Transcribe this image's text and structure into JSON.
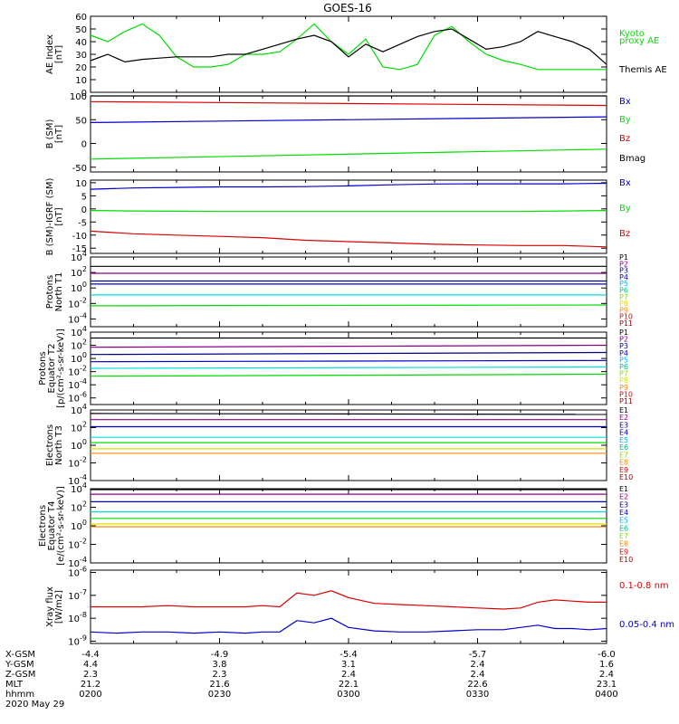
{
  "title": "GOES-16",
  "colors": {
    "black": "#000000",
    "red": "#dd0000",
    "green": "#00dd00",
    "blue": "#0000cc",
    "cyan": "#00dddd",
    "yellow": "#dddd00",
    "orange": "#ff8800",
    "darkred": "#aa0000",
    "purple": "#880088",
    "navy": "#000088",
    "lightblue": "#00aaff",
    "teal": "#00bb88",
    "lime": "#88dd00"
  },
  "time_axis": {
    "rows": [
      {
        "label": "X-GSM",
        "values": [
          "-4.4",
          "-4.9",
          "-5.4",
          "-5.7",
          "-6.0"
        ]
      },
      {
        "label": "Y-GSM",
        "values": [
          "4.4",
          "3.8",
          "3.1",
          "2.4",
          "1.6"
        ]
      },
      {
        "label": "Z-GSM",
        "values": [
          "2.3",
          "2.3",
          "2.4",
          "2.4",
          "2.4"
        ]
      },
      {
        "label": "MLT",
        "values": [
          "21.2",
          "21.6",
          "22.1",
          "22.6",
          "23.1"
        ]
      },
      {
        "label": "hhmm",
        "values": [
          "0200",
          "0230",
          "0300",
          "0330",
          "0400"
        ]
      }
    ],
    "date": "2020 May 29"
  },
  "chart_data": [
    {
      "type": "line",
      "ylabel": [
        "AE Index",
        "[nT]"
      ],
      "ylim": [
        0,
        60
      ],
      "ticks": [
        "0",
        "10",
        "20",
        "30",
        "40",
        "50",
        "60"
      ],
      "tickvals": [
        0,
        10,
        20,
        30,
        40,
        50,
        60
      ],
      "legend": [
        {
          "text": "Kyoto",
          "color": "green"
        },
        {
          "text": "proxy AE",
          "color": "green"
        },
        {
          "text": "Themis AE",
          "color": "black"
        }
      ],
      "x": [
        0,
        4,
        8,
        12,
        16,
        20,
        24,
        28,
        32,
        36,
        40,
        44,
        48,
        52,
        56,
        60,
        64,
        68,
        72,
        76,
        80,
        84,
        88,
        92,
        96,
        100,
        104,
        108,
        112,
        116,
        120
      ],
      "series": [
        {
          "name": "Kyoto proxy AE",
          "color": "green",
          "values": [
            45,
            40,
            48,
            54,
            45,
            28,
            20,
            20,
            22,
            30,
            30,
            32,
            42,
            54,
            40,
            30,
            42,
            20,
            18,
            22,
            45,
            52,
            40,
            30,
            25,
            22,
            18,
            18,
            18,
            18,
            18
          ]
        },
        {
          "name": "Themis AE",
          "color": "black",
          "values": [
            25,
            30,
            24,
            26,
            27,
            28,
            28,
            28,
            30,
            30,
            34,
            38,
            42,
            45,
            40,
            28,
            38,
            32,
            38,
            44,
            48,
            50,
            42,
            34,
            36,
            40,
            48,
            44,
            40,
            34,
            22
          ]
        }
      ]
    },
    {
      "type": "line",
      "ylabel": [
        "B (SM)",
        "[nT]"
      ],
      "ylim": [
        -60,
        100
      ],
      "ticks": [
        "-50",
        "0",
        "50",
        "100"
      ],
      "tickvals": [
        -50,
        0,
        50,
        100
      ],
      "legend": [
        {
          "text": "Bx",
          "color": "blue"
        },
        {
          "text": "By",
          "color": "green"
        },
        {
          "text": "Bz",
          "color": "red"
        },
        {
          "text": "Bmag",
          "color": "black"
        }
      ],
      "x": [
        0,
        120
      ],
      "series": [
        {
          "name": "Bx",
          "color": "blue",
          "values": [
            44,
            56
          ]
        },
        {
          "name": "By",
          "color": "green",
          "values": [
            -33,
            -12
          ]
        },
        {
          "name": "Bz",
          "color": "red",
          "values": [
            88,
            80
          ]
        },
        {
          "name": "Bmag",
          "color": "black",
          "values": [
            100,
            100
          ]
        }
      ]
    },
    {
      "type": "line",
      "ylabel": [
        "B (SM)-IGRF (SM)",
        "[nT]"
      ],
      "ylim": [
        -17,
        11
      ],
      "ticks": [
        "10",
        "5",
        "0",
        "-5",
        "-10",
        "-15"
      ],
      "tickvals": [
        10,
        5,
        0,
        -5,
        -10,
        -15
      ],
      "legend": [
        {
          "text": "Bx",
          "color": "blue"
        },
        {
          "text": "By",
          "color": "green"
        },
        {
          "text": "Bz",
          "color": "red"
        }
      ],
      "x": [
        0,
        10,
        20,
        30,
        40,
        50,
        60,
        70,
        80,
        90,
        100,
        110,
        120
      ],
      "series": [
        {
          "name": "Bx",
          "color": "blue",
          "values": [
            7.5,
            8,
            8.2,
            8.4,
            8.4,
            8.5,
            8.8,
            9.2,
            9.5,
            9.6,
            9.6,
            9.6,
            9.8
          ]
        },
        {
          "name": "By",
          "color": "green",
          "values": [
            -0.6,
            -0.8,
            -0.9,
            -1,
            -1,
            -1,
            -1,
            -1,
            -1,
            -1,
            -1,
            -0.8,
            -0.6
          ]
        },
        {
          "name": "Bz",
          "color": "red",
          "values": [
            -8.5,
            -9.5,
            -10,
            -10.5,
            -11,
            -12,
            -12.5,
            -13,
            -13.5,
            -13.8,
            -14,
            -14,
            -14.5
          ]
        }
      ]
    },
    {
      "type": "line",
      "log": true,
      "ylabel": [
        "Protons",
        "North T1"
      ],
      "ylim": [
        -5,
        4
      ],
      "ticks": [
        "10^4",
        "10^2",
        "10^0",
        "10^-2",
        "10^-4"
      ],
      "tickvals": [
        4,
        2,
        0,
        -2,
        -4
      ],
      "legend": [
        {
          "text": "P1",
          "color": "black"
        },
        {
          "text": "P2",
          "color": "purple"
        },
        {
          "text": "P3",
          "color": "navy"
        },
        {
          "text": "P4",
          "color": "blue"
        },
        {
          "text": "P5",
          "color": "lightblue"
        },
        {
          "text": "P6",
          "color": "teal"
        },
        {
          "text": "P7",
          "color": "lime"
        },
        {
          "text": "P8",
          "color": "yellow"
        },
        {
          "text": "P9",
          "color": "orange"
        },
        {
          "text": "P10",
          "color": "red"
        },
        {
          "text": "P11",
          "color": "darkred"
        }
      ],
      "x": [
        0,
        120
      ],
      "series": [
        {
          "name": "P1",
          "color": "black",
          "values": [
            2.8,
            2.8
          ]
        },
        {
          "name": "P2",
          "color": "purple",
          "values": [
            1.9,
            1.9
          ]
        },
        {
          "name": "P3",
          "color": "navy",
          "values": [
            0.9,
            0.9
          ]
        },
        {
          "name": "P4",
          "color": "blue",
          "values": [
            0.5,
            0.5
          ]
        },
        {
          "name": "P5",
          "color": "cyan",
          "values": [
            -0.9,
            -0.9
          ]
        },
        {
          "name": "P6",
          "color": "green",
          "values": [
            -2.3,
            -2.2
          ]
        }
      ]
    },
    {
      "type": "line",
      "log": true,
      "ylabel": [
        "Protons",
        "Equator T2",
        "[p/(cm²-s-sr-keV)]"
      ],
      "ylim": [
        -7,
        4
      ],
      "ticks": [
        "10^4",
        "10^2",
        "10^0",
        "10^-2",
        "10^-4",
        "10^-6"
      ],
      "tickvals": [
        4,
        2,
        0,
        -2,
        -4,
        -6
      ],
      "legend": [
        {
          "text": "P1",
          "color": "black"
        },
        {
          "text": "P2",
          "color": "purple"
        },
        {
          "text": "P3",
          "color": "navy"
        },
        {
          "text": "P4",
          "color": "blue"
        },
        {
          "text": "P5",
          "color": "lightblue"
        },
        {
          "text": "P6",
          "color": "teal"
        },
        {
          "text": "P7",
          "color": "lime"
        },
        {
          "text": "P8",
          "color": "yellow"
        },
        {
          "text": "P9",
          "color": "orange"
        },
        {
          "text": "P10",
          "color": "red"
        },
        {
          "text": "P11",
          "color": "darkred"
        }
      ],
      "x": [
        0,
        120
      ],
      "series": [
        {
          "name": "P1",
          "color": "black",
          "values": [
            3.1,
            3.1
          ]
        },
        {
          "name": "P2",
          "color": "purple",
          "values": [
            1.7,
            2.0
          ]
        },
        {
          "name": "P3",
          "color": "navy",
          "values": [
            0.6,
            0.9
          ]
        },
        {
          "name": "P4",
          "color": "blue",
          "values": [
            -0.5,
            -0.3
          ]
        },
        {
          "name": "P5",
          "color": "cyan",
          "values": [
            -1.5,
            -1.3
          ]
        },
        {
          "name": "P6",
          "color": "green",
          "values": [
            -2.7,
            -2.4
          ]
        }
      ]
    },
    {
      "type": "line",
      "log": true,
      "ylabel": [
        "Electrons",
        "North T3"
      ],
      "ylim": [
        -4,
        4
      ],
      "ticks": [
        "10^4",
        "10^2",
        "10^0",
        "10^-2",
        "10^-4"
      ],
      "tickvals": [
        4,
        2,
        0,
        -2,
        -4
      ],
      "legend": [
        {
          "text": "E1",
          "color": "black"
        },
        {
          "text": "E2",
          "color": "purple"
        },
        {
          "text": "E3",
          "color": "navy"
        },
        {
          "text": "E4",
          "color": "blue"
        },
        {
          "text": "E5",
          "color": "lightblue"
        },
        {
          "text": "E6",
          "color": "teal"
        },
        {
          "text": "E7",
          "color": "lime"
        },
        {
          "text": "E8",
          "color": "orange"
        },
        {
          "text": "E9",
          "color": "red"
        },
        {
          "text": "E10",
          "color": "darkred"
        }
      ],
      "x": [
        0,
        120
      ],
      "series": [
        {
          "name": "E1",
          "color": "black",
          "values": [
            3.6,
            3.5
          ]
        },
        {
          "name": "E2",
          "color": "purple",
          "values": [
            2.9,
            2.9
          ]
        },
        {
          "name": "E3",
          "color": "blue",
          "values": [
            2.1,
            2.1
          ]
        },
        {
          "name": "E4",
          "color": "cyan",
          "values": [
            0.9,
            0.9
          ]
        },
        {
          "name": "E5",
          "color": "green",
          "values": [
            0.3,
            0.3
          ]
        },
        {
          "name": "E6",
          "color": "yellow",
          "values": [
            -0.4,
            -0.4
          ]
        },
        {
          "name": "E7",
          "color": "orange",
          "values": [
            -0.9,
            -0.9
          ]
        }
      ]
    },
    {
      "type": "line",
      "log": true,
      "ylabel": [
        "Electrons",
        "Equator T4",
        "[e/(cm²-s-sr-keV)]"
      ],
      "ylim": [
        -4,
        4
      ],
      "ticks": [
        "10^4",
        "10^2",
        "10^0",
        "10^-2",
        "10^-4"
      ],
      "tickvals": [
        4,
        2,
        0,
        -2,
        -4
      ],
      "legend": [
        {
          "text": "E1",
          "color": "black"
        },
        {
          "text": "E2",
          "color": "purple"
        },
        {
          "text": "E3",
          "color": "navy"
        },
        {
          "text": "E4",
          "color": "blue"
        },
        {
          "text": "E5",
          "color": "lightblue"
        },
        {
          "text": "E6",
          "color": "teal"
        },
        {
          "text": "E7",
          "color": "lime"
        },
        {
          "text": "E8",
          "color": "orange"
        },
        {
          "text": "E9",
          "color": "red"
        },
        {
          "text": "E10",
          "color": "darkred"
        }
      ],
      "x": [
        0,
        120
      ],
      "series": [
        {
          "name": "E1",
          "color": "black",
          "values": [
            3.9,
            3.9
          ]
        },
        {
          "name": "E2",
          "color": "purple",
          "values": [
            3.4,
            3.4
          ]
        },
        {
          "name": "E3",
          "color": "blue",
          "values": [
            2.6,
            2.6
          ]
        },
        {
          "name": "E4",
          "color": "cyan",
          "values": [
            1.5,
            1.5
          ]
        },
        {
          "name": "E5",
          "color": "green",
          "values": [
            0.8,
            0.8
          ]
        },
        {
          "name": "E6",
          "color": "yellow",
          "values": [
            0.2,
            0.2
          ]
        },
        {
          "name": "E7",
          "color": "orange",
          "values": [
            -0.1,
            -0.1
          ]
        }
      ]
    },
    {
      "type": "line",
      "log": true,
      "ylabel": [
        "Xray flux",
        "[W/m2]"
      ],
      "ylim": [
        -9.1,
        -5.9
      ],
      "ticks": [
        "10^-6",
        "10^-7",
        "10^-8",
        "10^-9"
      ],
      "tickvals": [
        -6,
        -7,
        -8,
        -9
      ],
      "legend": [
        {
          "text": "0.1-0.8 nm",
          "color": "red"
        },
        {
          "text": "0.05-0.4 nm",
          "color": "blue"
        }
      ],
      "x": [
        0,
        6,
        12,
        18,
        24,
        30,
        36,
        40,
        44,
        48,
        52,
        56,
        60,
        66,
        72,
        78,
        84,
        90,
        96,
        100,
        104,
        108,
        112,
        116,
        120
      ],
      "series": [
        {
          "name": "0.1-0.8 nm",
          "color": "red",
          "values": [
            -7.5,
            -7.5,
            -7.5,
            -7.45,
            -7.5,
            -7.5,
            -7.5,
            -7.45,
            -7.5,
            -6.9,
            -7.0,
            -6.8,
            -7.1,
            -7.35,
            -7.4,
            -7.45,
            -7.5,
            -7.55,
            -7.6,
            -7.55,
            -7.3,
            -7.2,
            -7.25,
            -7.3,
            -7.3
          ]
        },
        {
          "name": "0.05-0.4 nm",
          "color": "blue",
          "values": [
            -8.6,
            -8.65,
            -8.6,
            -8.6,
            -8.65,
            -8.6,
            -8.65,
            -8.6,
            -8.6,
            -8.1,
            -8.2,
            -8.0,
            -8.4,
            -8.55,
            -8.6,
            -8.6,
            -8.55,
            -8.5,
            -8.5,
            -8.4,
            -8.3,
            -8.45,
            -8.45,
            -8.5,
            -8.45
          ]
        }
      ]
    }
  ]
}
